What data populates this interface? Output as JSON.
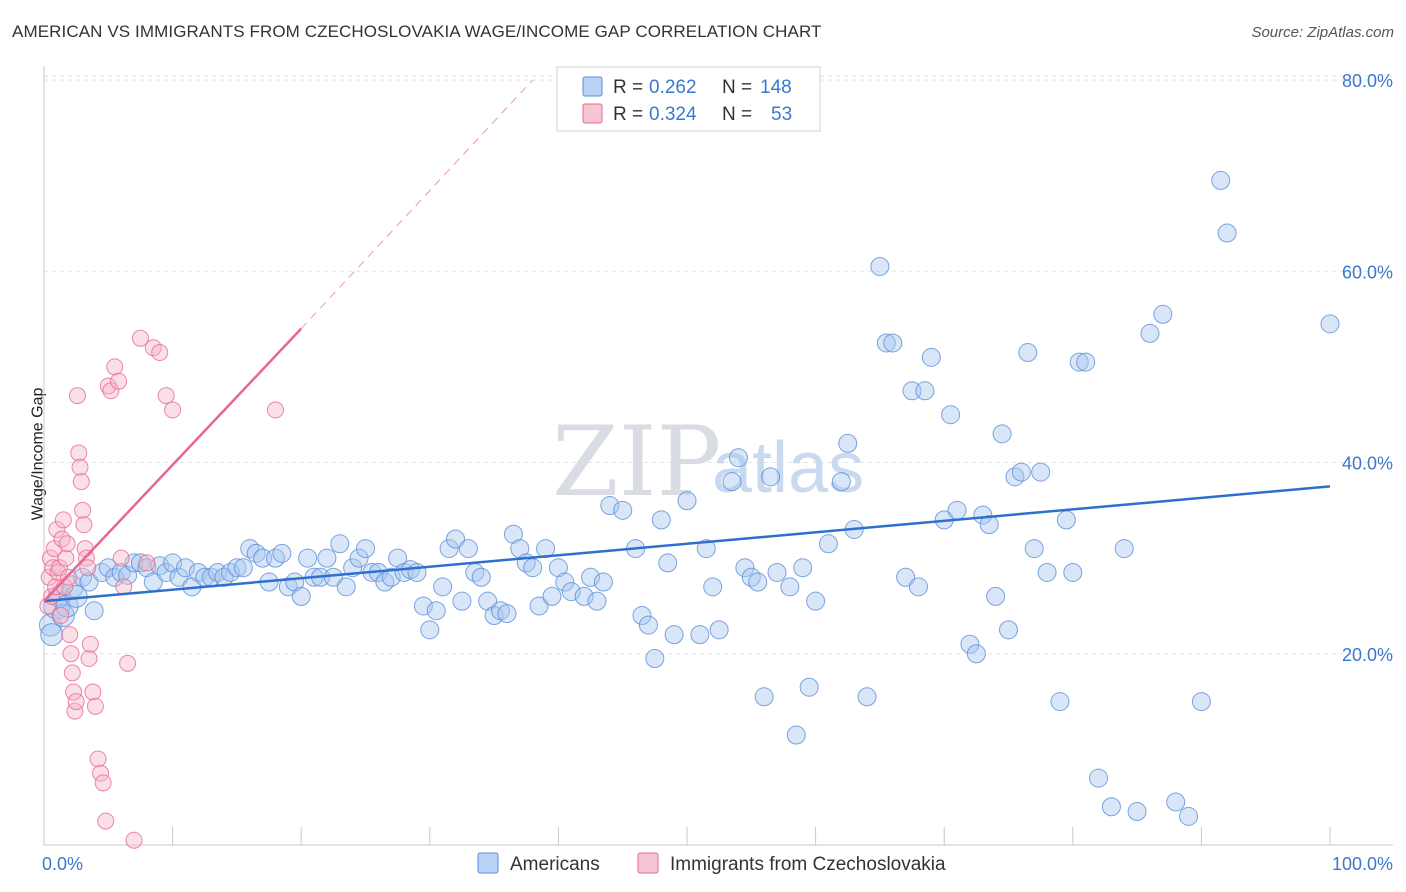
{
  "title": "AMERICAN VS IMMIGRANTS FROM CZECHOSLOVAKIA WAGE/INCOME GAP CORRELATION CHART",
  "source": "Source: ZipAtlas.com",
  "watermark": {
    "zip": "ZIP",
    "atlas": "atlas"
  },
  "legend_top": [
    {
      "r_label": "R =",
      "r": "0.262",
      "n_label": "N =",
      "n": "148",
      "color": "#a9c7f0"
    },
    {
      "r_label": "R =",
      "r": "0.324",
      "n_label": "N =",
      "n": "53",
      "color": "#f5b8c9"
    }
  ],
  "legend_bottom": [
    {
      "name": "Americans",
      "color": "#a9c7f0"
    },
    {
      "name": "Immigrants from Czechoslovakia",
      "color": "#f5b8c9"
    }
  ],
  "chart_data": {
    "type": "scatter",
    "title": "AMERICAN VS IMMIGRANTS FROM CZECHOSLOVAKIA WAGE/INCOME GAP CORRELATION CHART",
    "xlabel": "",
    "ylabel": "Wage/Income Gap",
    "xlim": [
      0,
      100
    ],
    "ylim": [
      0,
      80
    ],
    "x_tick_labels": [
      "0.0%",
      "100.0%"
    ],
    "y_ticks": [
      20,
      40,
      60,
      80
    ],
    "y_tick_labels": [
      "20.0%",
      "40.0%",
      "60.0%",
      "80.0%"
    ],
    "grid": true,
    "series": [
      {
        "name": "Americans",
        "color": "#5b8fd8",
        "fill": "#a9c7f0",
        "trend": {
          "x0": 0,
          "y0": 25.5,
          "x1": 100,
          "y1": 37.5
        },
        "points": [
          [
            0.5,
            23
          ],
          [
            0.6,
            22
          ],
          [
            1,
            25
          ],
          [
            1.2,
            26
          ],
          [
            1.5,
            24
          ],
          [
            1.8,
            25
          ],
          [
            2.2,
            27
          ],
          [
            2.5,
            26
          ],
          [
            3,
            28
          ],
          [
            3.5,
            27.5
          ],
          [
            3.9,
            24.5
          ],
          [
            4.5,
            28.5
          ],
          [
            5,
            29
          ],
          [
            5.5,
            28
          ],
          [
            6,
            28.5
          ],
          [
            6.5,
            28.2
          ],
          [
            7,
            29.5
          ],
          [
            7.5,
            29.5
          ],
          [
            8,
            29
          ],
          [
            8.5,
            27.5
          ],
          [
            9,
            29.2
          ],
          [
            9.5,
            28.5
          ],
          [
            10,
            29.5
          ],
          [
            10.5,
            28
          ],
          [
            11,
            29
          ],
          [
            11.5,
            27
          ],
          [
            12,
            28.5
          ],
          [
            12.5,
            28
          ],
          [
            13,
            28
          ],
          [
            13.5,
            28.5
          ],
          [
            14,
            28
          ],
          [
            14.5,
            28.5
          ],
          [
            15,
            29
          ],
          [
            15.5,
            29
          ],
          [
            16,
            31
          ],
          [
            16.5,
            30.5
          ],
          [
            17,
            30
          ],
          [
            17.5,
            27.5
          ],
          [
            18,
            30
          ],
          [
            18.5,
            30.5
          ],
          [
            19,
            27
          ],
          [
            19.5,
            27.5
          ],
          [
            20,
            26
          ],
          [
            20.5,
            30
          ],
          [
            21,
            28
          ],
          [
            21.5,
            28
          ],
          [
            22,
            30
          ],
          [
            22.5,
            28
          ],
          [
            23,
            31.5
          ],
          [
            23.5,
            27
          ],
          [
            24,
            29
          ],
          [
            24.5,
            30
          ],
          [
            25,
            31
          ],
          [
            25.5,
            28.5
          ],
          [
            26,
            28.5
          ],
          [
            26.5,
            27.5
          ],
          [
            27,
            28
          ],
          [
            27.5,
            30
          ],
          [
            28,
            28.5
          ],
          [
            28.5,
            28.8
          ],
          [
            29,
            28.5
          ],
          [
            29.5,
            25
          ],
          [
            30,
            22.5
          ],
          [
            30.5,
            24.5
          ],
          [
            31,
            27
          ],
          [
            31.5,
            31
          ],
          [
            32,
            32
          ],
          [
            32.5,
            25.5
          ],
          [
            33,
            31
          ],
          [
            33.5,
            28.5
          ],
          [
            34,
            28
          ],
          [
            34.5,
            25.5
          ],
          [
            35,
            24
          ],
          [
            35.5,
            24.5
          ],
          [
            36,
            24.2
          ],
          [
            36.5,
            32.5
          ],
          [
            37,
            31
          ],
          [
            37.5,
            29.5
          ],
          [
            38,
            29
          ],
          [
            38.5,
            25
          ],
          [
            39,
            31
          ],
          [
            39.5,
            26
          ],
          [
            40,
            29
          ],
          [
            40.5,
            27.5
          ],
          [
            41,
            26.5
          ],
          [
            42,
            26
          ],
          [
            42.5,
            28
          ],
          [
            43,
            25.5
          ],
          [
            43.5,
            27.5
          ],
          [
            44,
            35.5
          ],
          [
            45,
            35
          ],
          [
            46,
            31
          ],
          [
            46.5,
            24
          ],
          [
            47,
            23
          ],
          [
            47.5,
            19.5
          ],
          [
            48,
            34
          ],
          [
            48.5,
            29.5
          ],
          [
            49,
            22
          ],
          [
            50,
            36
          ],
          [
            51,
            22
          ],
          [
            51.5,
            31
          ],
          [
            52,
            27
          ],
          [
            52.5,
            22.5
          ],
          [
            53.5,
            38
          ],
          [
            54,
            40.5
          ],
          [
            54.5,
            29
          ],
          [
            55,
            28
          ],
          [
            55.5,
            27.5
          ],
          [
            56,
            15.5
          ],
          [
            56.5,
            38.5
          ],
          [
            57,
            28.5
          ],
          [
            58,
            27
          ],
          [
            58.5,
            11.5
          ],
          [
            59,
            29
          ],
          [
            59.5,
            16.5
          ],
          [
            60,
            25.5
          ],
          [
            61,
            31.5
          ],
          [
            62,
            38
          ],
          [
            62.5,
            42
          ],
          [
            63,
            33
          ],
          [
            64,
            15.5
          ],
          [
            65,
            60.5
          ],
          [
            65.5,
            52.5
          ],
          [
            66,
            52.5
          ],
          [
            67,
            28
          ],
          [
            67.5,
            47.5
          ],
          [
            68,
            27
          ],
          [
            68.5,
            47.5
          ],
          [
            69,
            51
          ],
          [
            70,
            34
          ],
          [
            70.5,
            45
          ],
          [
            71,
            35
          ],
          [
            72,
            21
          ],
          [
            72.5,
            20
          ],
          [
            73,
            34.5
          ],
          [
            73.5,
            33.5
          ],
          [
            74,
            26
          ],
          [
            74.5,
            43
          ],
          [
            75,
            22.5
          ],
          [
            75.5,
            38.5
          ],
          [
            76,
            39
          ],
          [
            76.5,
            51.5
          ],
          [
            77,
            31
          ],
          [
            77.5,
            39
          ],
          [
            78,
            28.5
          ],
          [
            79,
            15
          ],
          [
            79.5,
            34
          ],
          [
            80,
            28.5
          ],
          [
            80.5,
            50.5
          ],
          [
            81,
            50.5
          ],
          [
            82,
            7
          ],
          [
            83,
            4
          ],
          [
            84,
            31
          ],
          [
            85,
            3.5
          ],
          [
            86,
            53.5
          ],
          [
            87,
            55.5
          ],
          [
            88,
            4.5
          ],
          [
            89,
            3
          ],
          [
            90,
            15
          ],
          [
            91.5,
            69.5
          ],
          [
            92,
            64
          ],
          [
            100,
            54.5
          ]
        ]
      },
      {
        "name": "Immigrants from Czechoslovakia",
        "color": "#e86a92",
        "fill": "#f5b8c9",
        "trend": {
          "x0": 0,
          "y0": 25.5,
          "x1": 20,
          "y1": 54
        },
        "trend_dashed": {
          "x0": 20,
          "y0": 54,
          "x1": 38,
          "y1": 80
        },
        "points": [
          [
            0.3,
            25
          ],
          [
            0.4,
            28
          ],
          [
            0.5,
            30
          ],
          [
            0.6,
            26
          ],
          [
            0.7,
            29
          ],
          [
            0.8,
            31
          ],
          [
            0.9,
            27
          ],
          [
            1,
            33
          ],
          [
            1.1,
            28.5
          ],
          [
            1.2,
            29
          ],
          [
            1.3,
            24
          ],
          [
            1.4,
            32
          ],
          [
            1.5,
            34
          ],
          [
            1.6,
            27
          ],
          [
            1.7,
            30
          ],
          [
            1.8,
            31.5
          ],
          [
            1.9,
            28
          ],
          [
            2,
            22
          ],
          [
            2.1,
            20
          ],
          [
            2.2,
            18
          ],
          [
            2.3,
            16
          ],
          [
            2.4,
            14
          ],
          [
            2.5,
            15
          ],
          [
            2.6,
            47
          ],
          [
            2.7,
            41
          ],
          [
            2.8,
            39.5
          ],
          [
            2.9,
            38
          ],
          [
            3,
            35
          ],
          [
            3.1,
            33.5
          ],
          [
            3.2,
            31
          ],
          [
            3.3,
            30
          ],
          [
            3.4,
            29
          ],
          [
            3.5,
            19.5
          ],
          [
            3.6,
            21
          ],
          [
            3.8,
            16
          ],
          [
            4,
            14.5
          ],
          [
            4.2,
            9
          ],
          [
            4.4,
            7.5
          ],
          [
            4.6,
            6.5
          ],
          [
            4.8,
            2.5
          ],
          [
            5,
            48
          ],
          [
            5.2,
            47.5
          ],
          [
            5.5,
            50
          ],
          [
            5.8,
            48.5
          ],
          [
            6,
            30
          ],
          [
            6.2,
            27
          ],
          [
            6.5,
            19
          ],
          [
            7,
            0.5
          ],
          [
            7.5,
            53
          ],
          [
            8,
            29.5
          ],
          [
            8.5,
            52
          ],
          [
            9,
            51.5
          ],
          [
            9.5,
            47
          ],
          [
            10,
            45.5
          ],
          [
            18,
            45.5
          ]
        ]
      }
    ]
  }
}
